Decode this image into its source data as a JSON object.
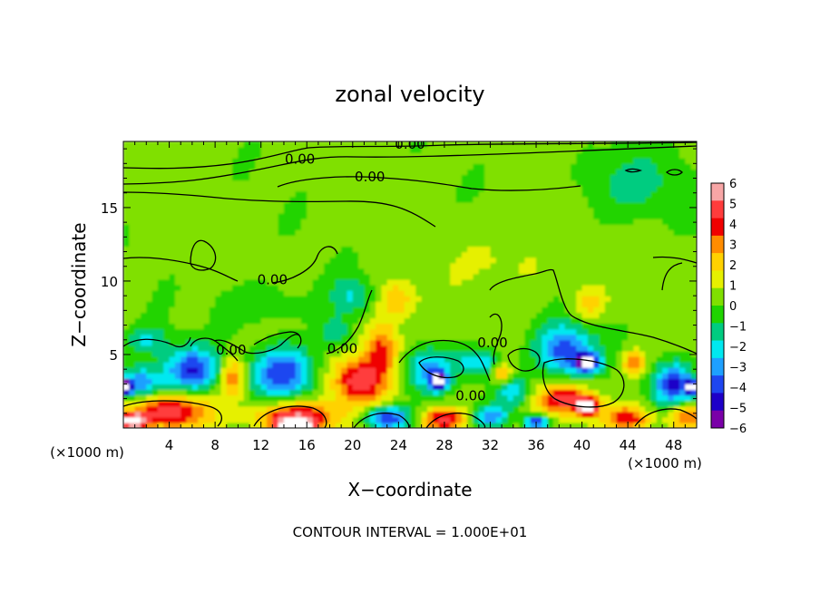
{
  "chart_data": {
    "type": "heatmap",
    "title": "zonal velocity",
    "xlabel": "X−coordinate",
    "ylabel": "Z−coordinate",
    "x_unit_left": "(×1000 m)",
    "x_unit_right": "(×1000 m)",
    "xlim": [
      0,
      50
    ],
    "ylim": [
      0,
      19.5
    ],
    "x_ticks": [
      4,
      8,
      12,
      16,
      20,
      24,
      28,
      32,
      36,
      40,
      44,
      48
    ],
    "y_ticks": [
      5,
      10,
      15
    ],
    "colorbar": {
      "range": [
        -6,
        6
      ],
      "ticks": [
        6,
        5,
        4,
        3,
        2,
        1,
        0,
        -1,
        -2,
        -3,
        -4,
        -5,
        -6
      ],
      "tick_labels": [
        "6",
        "5",
        "4",
        "3",
        "2",
        "1",
        "0",
        "−1",
        "−2",
        "−3",
        "−4",
        "−5",
        "−6"
      ],
      "colors": [
        "#f7a6a6",
        "#ff3c3c",
        "#f00000",
        "#ff8c00",
        "#ffd200",
        "#e6f000",
        "#80e000",
        "#20d400",
        "#00cc80",
        "#00e8f0",
        "#1ea0ff",
        "#1e46f0",
        "#1e00c8",
        "#7a00a8"
      ]
    },
    "contour_labels": [
      {
        "text": "0.00",
        "x": 25.0,
        "z": 19.3
      },
      {
        "text": "0.00",
        "x": 15.4,
        "z": 18.3
      },
      {
        "text": "0.00",
        "x": 21.5,
        "z": 17.1
      },
      {
        "text": "0.00",
        "x": 13.0,
        "z": 10.1
      },
      {
        "text": "0.00",
        "x": 19.1,
        "z": 5.4
      },
      {
        "text": "0.00",
        "x": 9.4,
        "z": 5.3
      },
      {
        "text": "0.00",
        "x": 32.2,
        "z": 5.8
      },
      {
        "text": "0.00",
        "x": 30.3,
        "z": 2.2
      }
    ],
    "anomalies": [
      {
        "x": 6.0,
        "z": 4.0,
        "value": -4.5,
        "rx": 2.5,
        "rz": 1.5
      },
      {
        "x": 1.5,
        "z": 3.0,
        "value": -4.0,
        "rx": 2.0,
        "rz": 1.2
      },
      {
        "x": 0.3,
        "z": 2.8,
        "value": -6.0,
        "rx": 0.5,
        "rz": 0.5
      },
      {
        "x": 9.5,
        "z": 3.5,
        "value": 3.5,
        "rx": 1.2,
        "rz": 1.4
      },
      {
        "x": 14.0,
        "z": 3.8,
        "value": -4.5,
        "rx": 2.8,
        "rz": 1.8
      },
      {
        "x": 20.5,
        "z": 3.2,
        "value": 4.5,
        "rx": 2.2,
        "rz": 1.6
      },
      {
        "x": 22.5,
        "z": 5.5,
        "value": 3.5,
        "rx": 1.5,
        "rz": 2.0
      },
      {
        "x": 23.8,
        "z": 8.8,
        "value": 2.5,
        "rx": 1.6,
        "rz": 1.2
      },
      {
        "x": 20.0,
        "z": 9.0,
        "value": -2.0,
        "rx": 2.0,
        "rz": 1.3
      },
      {
        "x": 18.5,
        "z": 6.5,
        "value": -2.0,
        "rx": 1.5,
        "rz": 1.2
      },
      {
        "x": 26.5,
        "z": 4.0,
        "value": -3.0,
        "rx": 2.0,
        "rz": 1.4
      },
      {
        "x": 27.5,
        "z": 3.2,
        "value": -6.0,
        "rx": 0.7,
        "rz": 0.6
      },
      {
        "x": 31.0,
        "z": 4.5,
        "value": -3.0,
        "rx": 2.0,
        "rz": 1.0
      },
      {
        "x": 33.0,
        "z": 3.8,
        "value": 3.0,
        "rx": 0.8,
        "rz": 0.7
      },
      {
        "x": 38.5,
        "z": 5.3,
        "value": -4.5,
        "rx": 2.5,
        "rz": 1.8
      },
      {
        "x": 40.5,
        "z": 4.5,
        "value": -6.0,
        "rx": 1.0,
        "rz": 0.6
      },
      {
        "x": 38.5,
        "z": 2.0,
        "value": 4.5,
        "rx": 2.2,
        "rz": 1.0
      },
      {
        "x": 40.5,
        "z": 1.5,
        "value": 5.5,
        "rx": 1.0,
        "rz": 0.6
      },
      {
        "x": 34.0,
        "z": 2.5,
        "value": -2.5,
        "rx": 1.5,
        "rz": 1.0
      },
      {
        "x": 44.5,
        "z": 4.5,
        "value": 3.0,
        "rx": 1.0,
        "rz": 0.8
      },
      {
        "x": 48.0,
        "z": 3.0,
        "value": -4.5,
        "rx": 1.8,
        "rz": 1.4
      },
      {
        "x": 49.5,
        "z": 2.8,
        "value": -6.0,
        "rx": 0.5,
        "rz": 0.5
      },
      {
        "x": 40.5,
        "z": 8.5,
        "value": 2.0,
        "rx": 1.5,
        "rz": 1.2
      },
      {
        "x": 4.0,
        "z": 1.2,
        "value": 4.5,
        "rx": 3.5,
        "rz": 1.2
      },
      {
        "x": 0.8,
        "z": 0.5,
        "value": 6.0,
        "rx": 1.2,
        "rz": 0.5
      },
      {
        "x": 15.0,
        "z": 0.8,
        "value": 5.0,
        "rx": 3.5,
        "rz": 1.0
      },
      {
        "x": 15.0,
        "z": 0.2,
        "value": 6.0,
        "rx": 1.5,
        "rz": 0.4
      },
      {
        "x": 23.0,
        "z": 0.7,
        "value": -5.0,
        "rx": 2.0,
        "rz": 0.8
      },
      {
        "x": 28.0,
        "z": 0.6,
        "value": 4.5,
        "rx": 2.0,
        "rz": 0.8
      },
      {
        "x": 32.0,
        "z": 0.8,
        "value": -3.5,
        "rx": 1.5,
        "rz": 0.7
      },
      {
        "x": 36.0,
        "z": 0.4,
        "value": -5.0,
        "rx": 1.0,
        "rz": 0.5
      },
      {
        "x": 44.0,
        "z": 0.7,
        "value": 4.0,
        "rx": 2.0,
        "rz": 0.8
      },
      {
        "x": 49.0,
        "z": 0.8,
        "value": 3.5,
        "rx": 1.5,
        "rz": 0.8
      },
      {
        "x": 44.0,
        "z": 16.5,
        "value": -1.5,
        "rx": 5.0,
        "rz": 2.5
      },
      {
        "x": 34.0,
        "z": 11.5,
        "value": 0.8,
        "rx": 4.0,
        "rz": 2.0
      },
      {
        "x": 12.0,
        "z": 8.5,
        "value": -1.2,
        "rx": 4.0,
        "rz": 1.5
      },
      {
        "x": 2.0,
        "z": 6.0,
        "value": -2.0,
        "rx": 2.0,
        "rz": 1.0
      }
    ],
    "footer": "CONTOUR INTERVAL = 1.000E+01"
  }
}
